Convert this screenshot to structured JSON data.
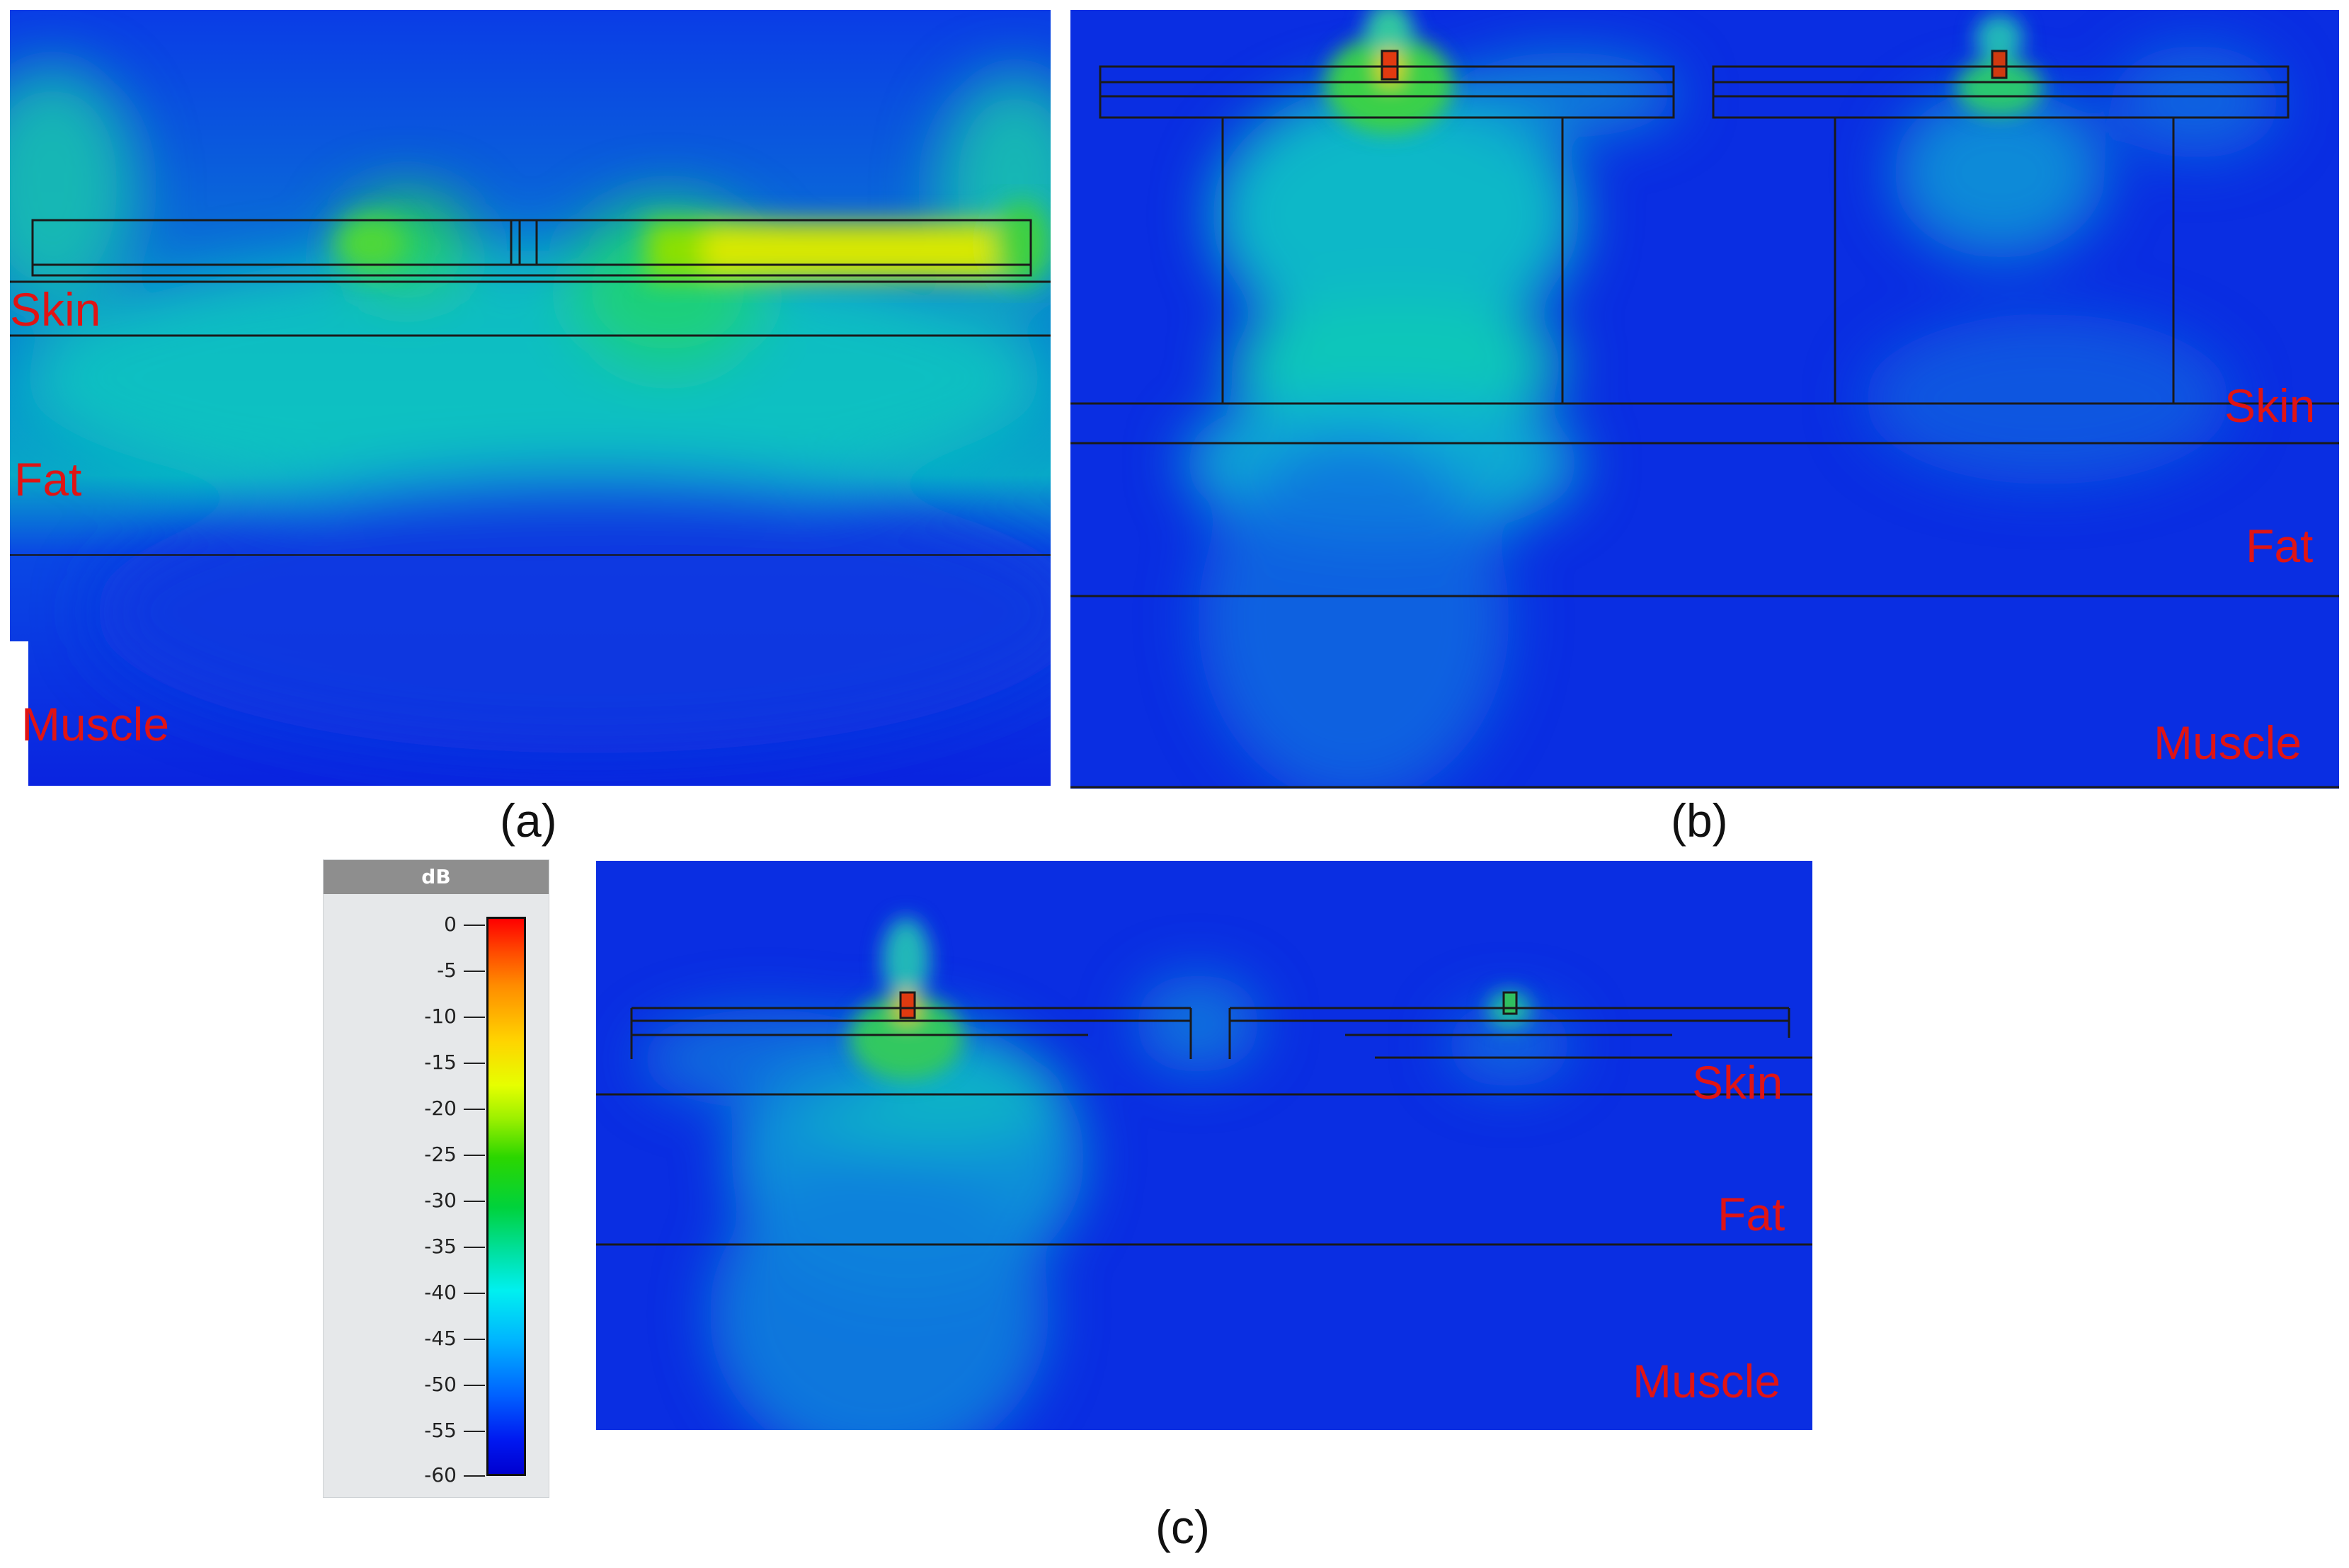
{
  "panels": {
    "a": {
      "caption": "(a)",
      "layers": {
        "skin": "Skin",
        "fat": "Fat",
        "muscle": "Muscle"
      }
    },
    "b": {
      "caption": "(b)",
      "layers": {
        "skin": "Skin",
        "fat": "Fat",
        "muscle": "Muscle"
      }
    },
    "c": {
      "caption": "(c)",
      "layers": {
        "skin": "Skin",
        "fat": "Fat",
        "muscle": "Muscle"
      }
    }
  },
  "colorbar": {
    "unit": "dB",
    "ticks": [
      "0",
      "-5",
      "-10",
      "-15",
      "-20",
      "-25",
      "-30",
      "-35",
      "-40",
      "-45",
      "-50",
      "-55",
      "-60"
    ]
  },
  "colors": {
    "background_field": "#0a2ee0",
    "label": "#e01414"
  }
}
